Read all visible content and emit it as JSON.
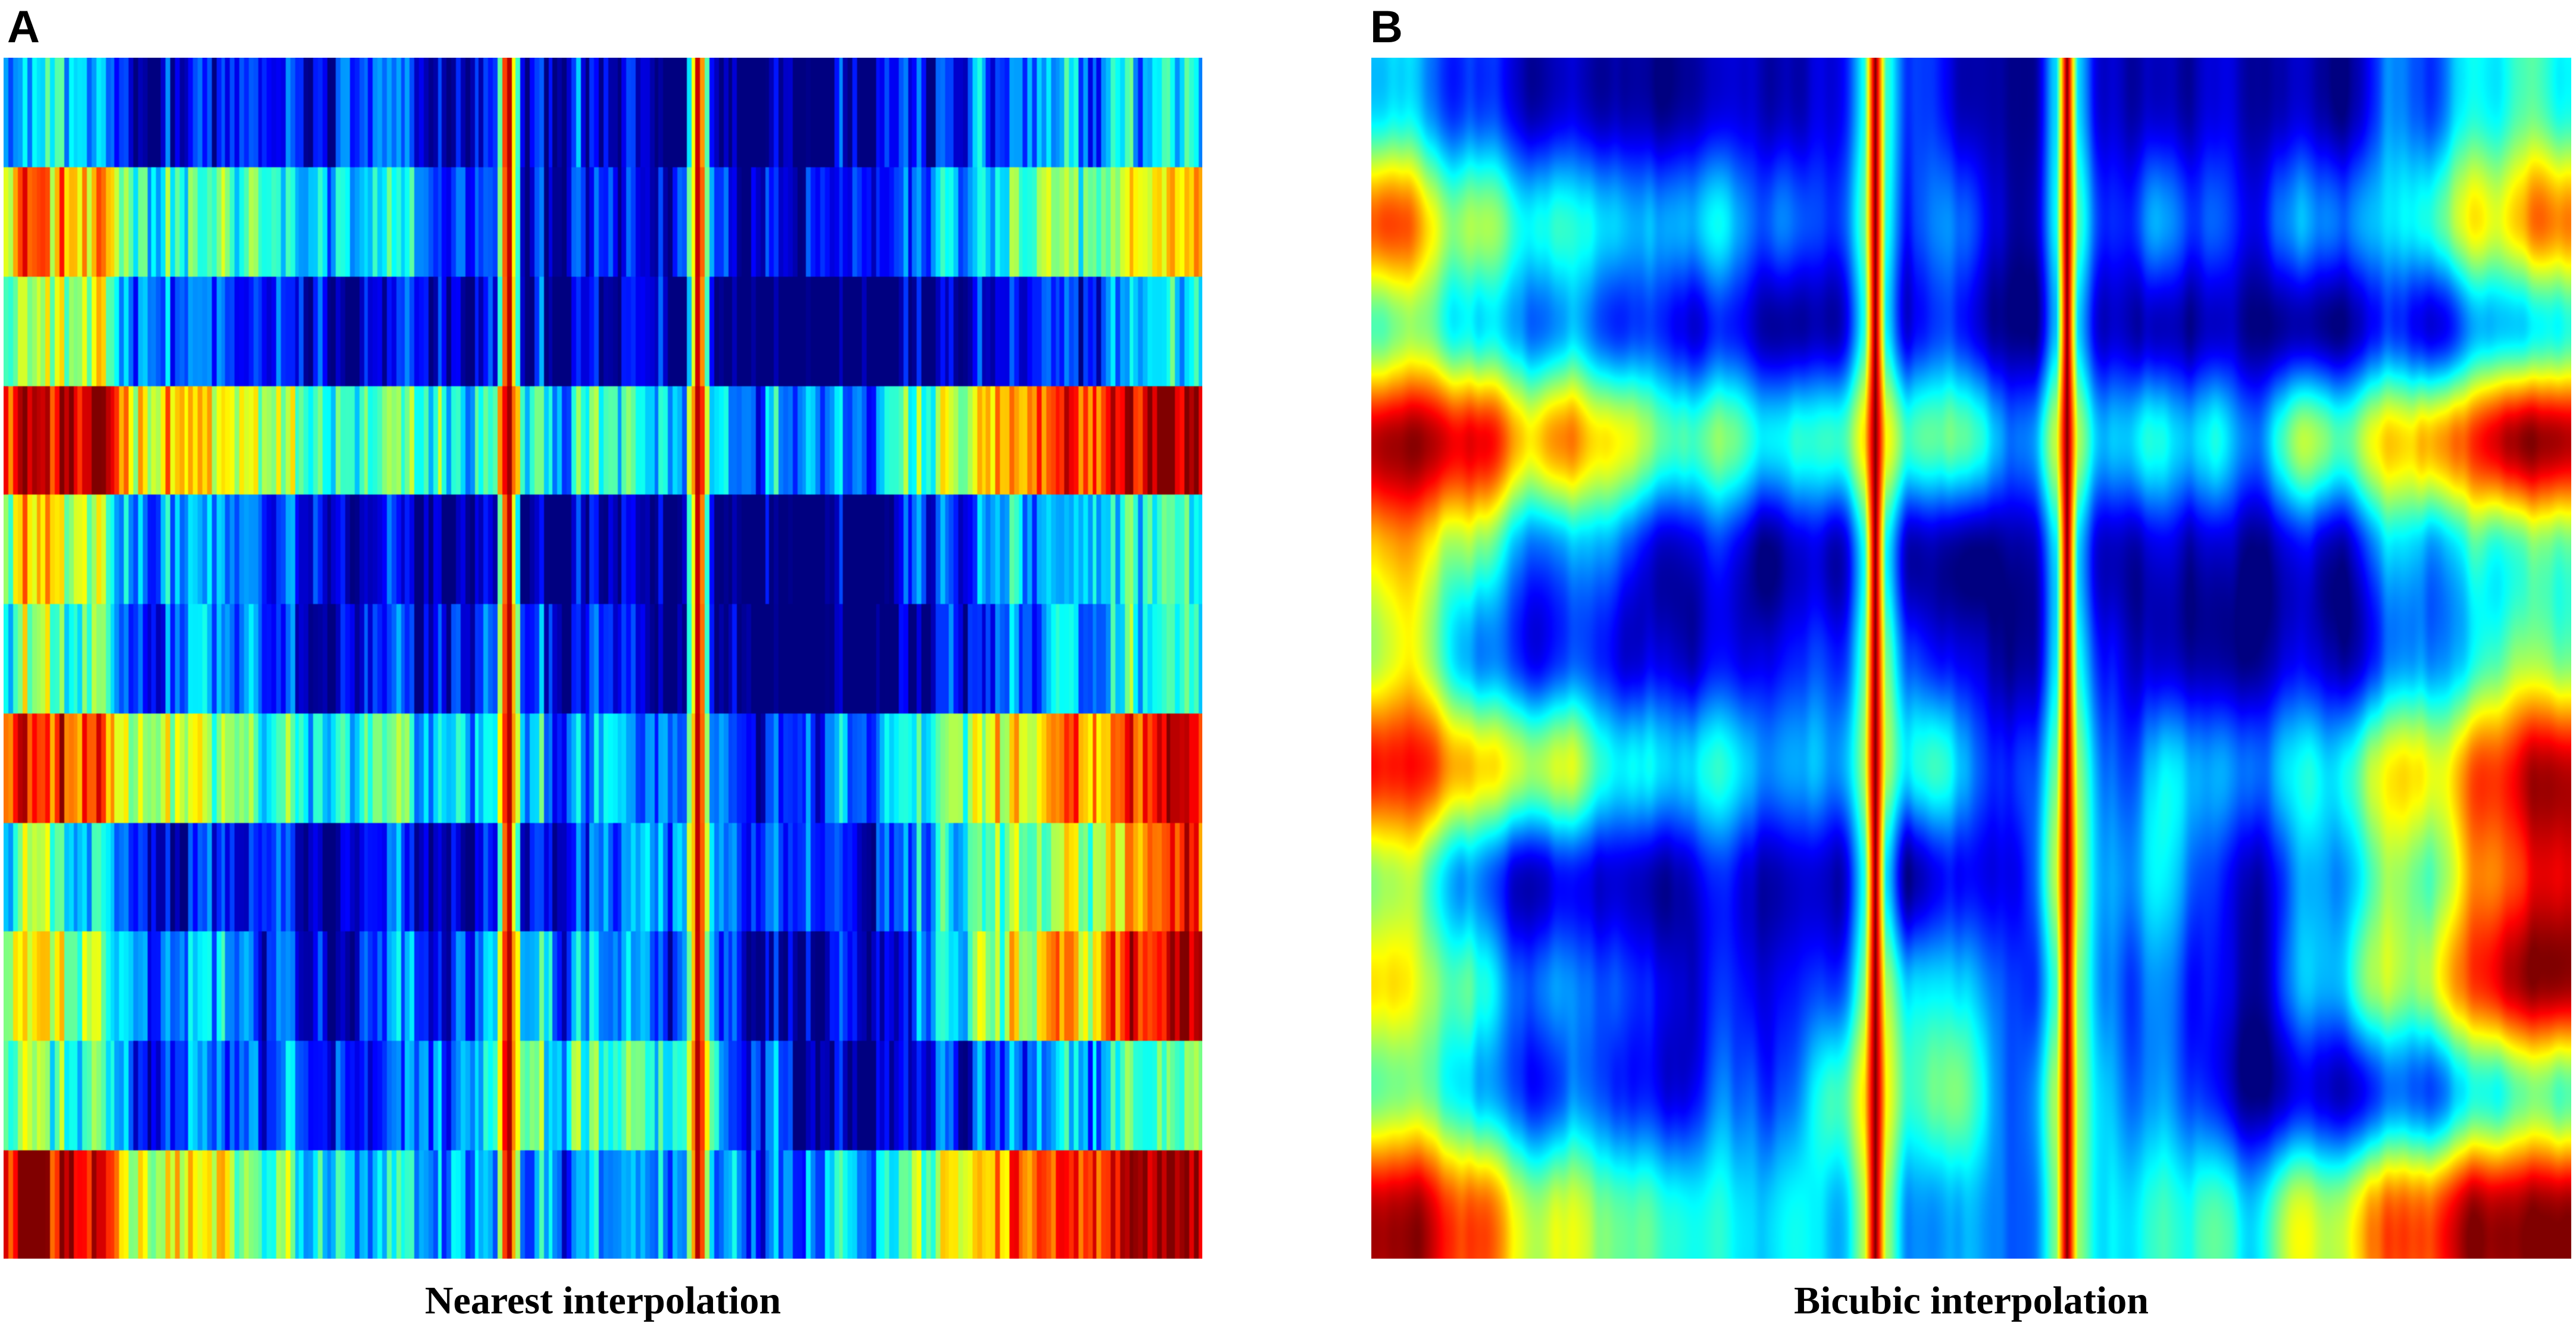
{
  "chart_data": [
    {
      "panel": "A",
      "type": "heatmap",
      "caption": "Nearest interpolation",
      "colormap": "jet",
      "rows": 11,
      "interpolation": "nearest",
      "value_range": [
        0,
        1
      ],
      "row_profiles": [
        [
          0.4,
          0.1,
          0.1,
          0.1,
          0.0,
          0.1,
          0.2,
          0.4
        ],
        [
          0.75,
          0.4,
          0.3,
          0.1,
          0.1,
          0.2,
          0.4,
          0.7
        ],
        [
          0.55,
          0.25,
          0.05,
          0.05,
          0.0,
          0.05,
          0.1,
          0.4
        ],
        [
          1.0,
          0.7,
          0.4,
          0.4,
          0.3,
          0.35,
          0.7,
          1.0
        ],
        [
          0.7,
          0.3,
          0.05,
          0.0,
          0.0,
          0.05,
          0.25,
          0.45
        ],
        [
          0.55,
          0.2,
          0.05,
          0.15,
          0.05,
          0.05,
          0.2,
          0.5
        ],
        [
          0.9,
          0.55,
          0.3,
          0.3,
          0.2,
          0.3,
          0.6,
          0.95
        ],
        [
          0.5,
          0.15,
          0.05,
          0.05,
          0.3,
          0.2,
          0.45,
          0.85
        ],
        [
          0.65,
          0.25,
          0.05,
          0.3,
          0.2,
          0.15,
          0.55,
          1.0
        ],
        [
          0.55,
          0.2,
          0.15,
          0.4,
          0.35,
          0.1,
          0.2,
          0.5
        ],
        [
          1.0,
          0.6,
          0.3,
          0.25,
          0.25,
          0.4,
          0.75,
          1.0
        ]
      ],
      "hot_columns": [
        0.42,
        0.58
      ]
    },
    {
      "panel": "B",
      "type": "heatmap",
      "caption": "Bicubic interpolation",
      "colormap": "jet",
      "rows": 11,
      "interpolation": "bicubic",
      "value_range": [
        0,
        1
      ],
      "row_profiles": [
        [
          0.4,
          0.1,
          0.1,
          0.1,
          0.0,
          0.1,
          0.2,
          0.4
        ],
        [
          0.75,
          0.4,
          0.3,
          0.1,
          0.1,
          0.2,
          0.4,
          0.7
        ],
        [
          0.55,
          0.25,
          0.05,
          0.05,
          0.0,
          0.05,
          0.1,
          0.4
        ],
        [
          1.0,
          0.7,
          0.4,
          0.4,
          0.3,
          0.35,
          0.7,
          1.0
        ],
        [
          0.7,
          0.3,
          0.05,
          0.0,
          0.0,
          0.05,
          0.25,
          0.45
        ],
        [
          0.55,
          0.2,
          0.05,
          0.15,
          0.05,
          0.05,
          0.2,
          0.5
        ],
        [
          0.9,
          0.55,
          0.3,
          0.3,
          0.2,
          0.3,
          0.6,
          0.95
        ],
        [
          0.5,
          0.15,
          0.05,
          0.05,
          0.3,
          0.2,
          0.45,
          0.85
        ],
        [
          0.65,
          0.25,
          0.05,
          0.3,
          0.2,
          0.15,
          0.55,
          1.0
        ],
        [
          0.55,
          0.2,
          0.15,
          0.4,
          0.35,
          0.1,
          0.2,
          0.5
        ],
        [
          1.0,
          0.6,
          0.3,
          0.25,
          0.25,
          0.4,
          0.75,
          1.0
        ]
      ],
      "hot_columns": [
        0.42,
        0.58
      ]
    }
  ]
}
